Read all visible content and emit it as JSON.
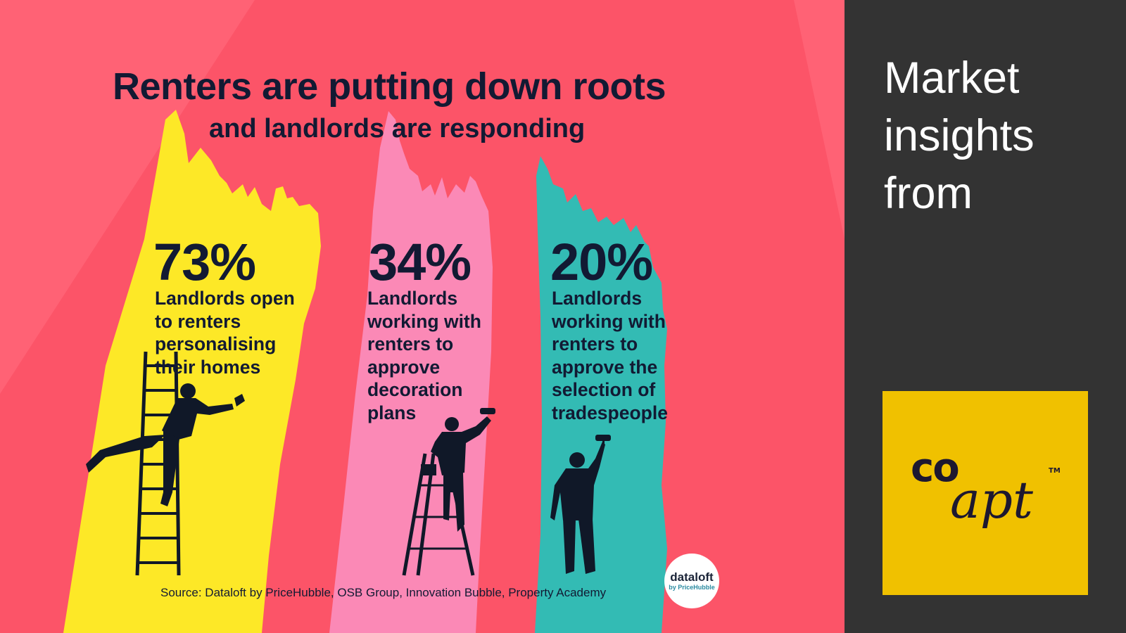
{
  "infographic": {
    "title": "Renters are putting down roots",
    "subtitle": "and landlords are responding",
    "stats": [
      {
        "value": "73%",
        "description": "Landlords open\nto renters\npersonalising\n       their homes",
        "stroke_color": "#fde827"
      },
      {
        "value": "34%",
        "description": "Landlords\nworking with\nrenters to\napprove\ndecoration\nplans",
        "stroke_color": "#fb89b6"
      },
      {
        "value": "20%",
        "description": "Landlords\nworking with\nrenters to\napprove the\nselection of\ntradespeople",
        "stroke_color": "#33bbb4"
      }
    ],
    "source": "Source: Dataloft by PriceHubble, OSB Group, Innovation Bubble, Property Academy",
    "badge": {
      "name": "dataloft",
      "byline": "by PriceHubble"
    },
    "colors": {
      "background": "#fc5468",
      "light_ray": "#ff6275",
      "text": "#121a33"
    },
    "illustrations": [
      "painter-on-ladder-icon",
      "painter-on-stepladder-icon",
      "painter-standing-icon"
    ]
  },
  "sidebar": {
    "heading": "Market\ninsights\nfrom",
    "logo": {
      "top": "co",
      "script": "apt",
      "trademark": "TM",
      "background": "#f0c100"
    }
  }
}
